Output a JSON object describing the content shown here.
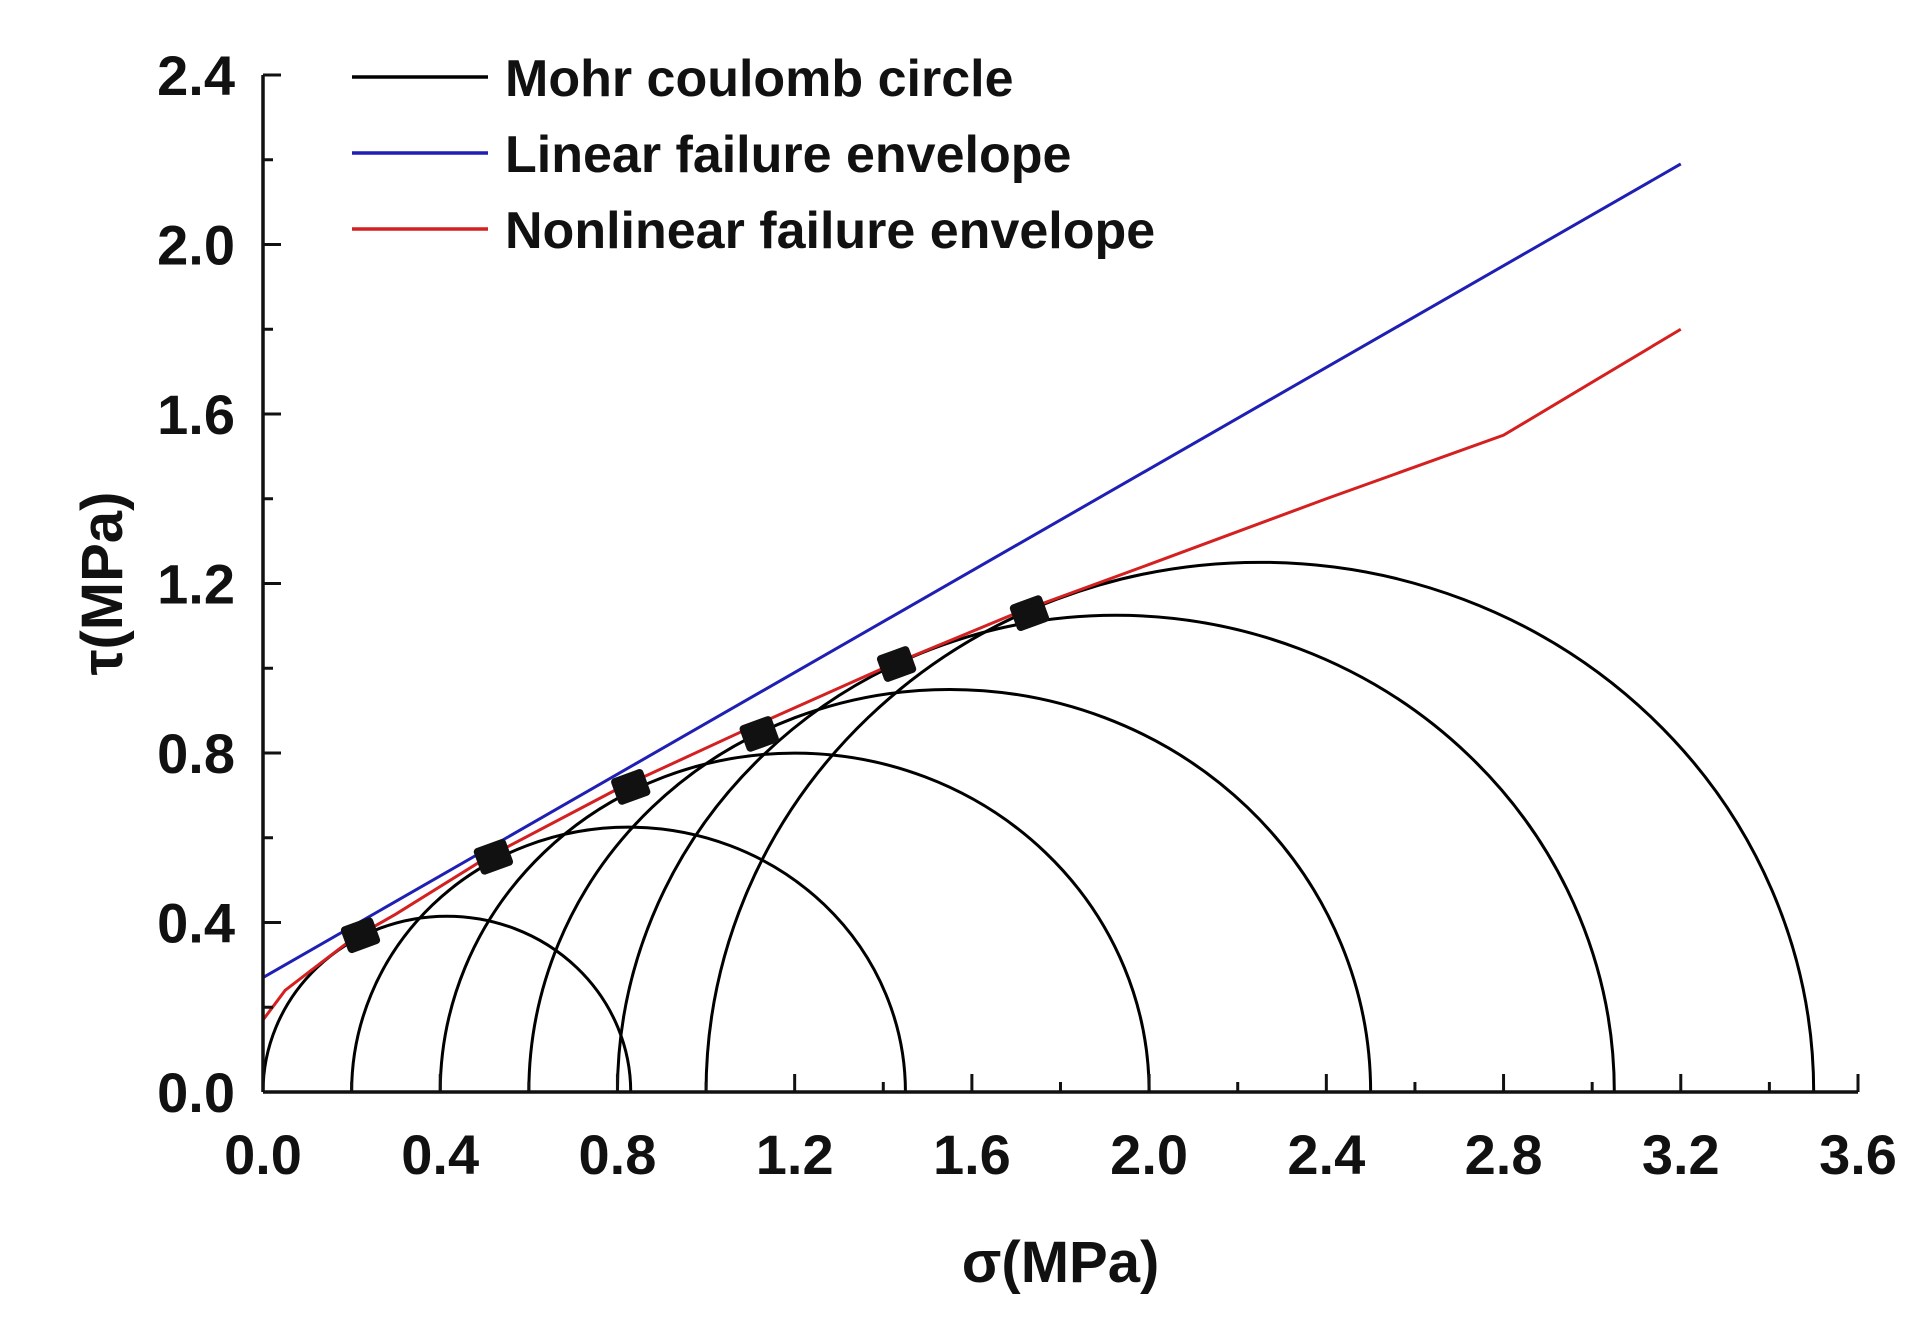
{
  "chart_data": {
    "type": "line",
    "xlabel": "σ(MPa)",
    "ylabel": "τ(MPa)",
    "xlim": [
      0,
      3.6
    ],
    "ylim": [
      0,
      2.4
    ],
    "x_ticks": [
      "0.0",
      "0.4",
      "0.8",
      "1.2",
      "1.6",
      "2.0",
      "2.4",
      "2.8",
      "3.2",
      "3.6"
    ],
    "y_ticks": [
      "0.0",
      "0.4",
      "0.8",
      "1.2",
      "1.6",
      "2.0",
      "2.4"
    ],
    "x_tick_values": [
      0,
      0.4,
      0.8,
      1.2,
      1.6,
      2.0,
      2.4,
      2.8,
      3.2,
      3.6
    ],
    "y_tick_values": [
      0,
      0.4,
      0.8,
      1.2,
      1.6,
      2.0,
      2.4
    ],
    "grid": false,
    "legend_position": "top-left",
    "legend": [
      {
        "label": "Mohr coulomb circle",
        "color": "#000000"
      },
      {
        "label": "Linear failure envelope",
        "color": "#1f1fb4"
      },
      {
        "label": "Nonlinear failure envelope",
        "color": "#d42020"
      }
    ],
    "circles": [
      {
        "sigma3": 0.0,
        "sigma1": 0.83
      },
      {
        "sigma3": 0.2,
        "sigma1": 1.45
      },
      {
        "sigma3": 0.4,
        "sigma1": 2.0
      },
      {
        "sigma3": 0.6,
        "sigma1": 2.5
      },
      {
        "sigma3": 0.8,
        "sigma1": 3.05
      },
      {
        "sigma3": 1.0,
        "sigma1": 3.5
      }
    ],
    "linear_envelope": {
      "x": [
        0,
        3.2
      ],
      "y": [
        0.27,
        2.19
      ]
    },
    "nonlinear_envelope": {
      "x": [
        0,
        0.05,
        0.1,
        0.2,
        0.3,
        0.5,
        0.8,
        1.1,
        1.4,
        1.7,
        2.0,
        2.4,
        2.8,
        3.2
      ],
      "y": [
        0.17,
        0.24,
        0.28,
        0.36,
        0.42,
        0.55,
        0.715,
        0.86,
        1.0,
        1.13,
        1.245,
        1.4,
        1.55,
        1.8
      ]
    },
    "tangent_points": [
      {
        "x": 0.22,
        "y": 0.37
      },
      {
        "x": 0.52,
        "y": 0.555
      },
      {
        "x": 0.83,
        "y": 0.72
      },
      {
        "x": 1.12,
        "y": 0.845
      },
      {
        "x": 1.43,
        "y": 1.01
      },
      {
        "x": 1.73,
        "y": 1.13
      }
    ]
  }
}
